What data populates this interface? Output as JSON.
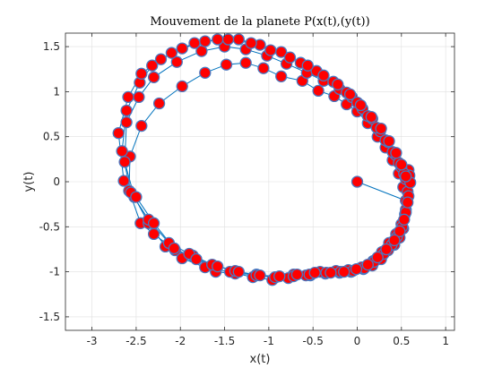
{
  "chart_data": {
    "type": "line",
    "title": "Mouvement de la planete P(x(t),(y(t))",
    "xlabel": "x(t)",
    "ylabel": "y(t)",
    "xlim": [
      -3.3,
      1.1
    ],
    "ylim": [
      -1.65,
      1.65
    ],
    "xticks": [
      -3,
      -2.5,
      -2,
      -1.5,
      -1,
      -0.5,
      0,
      0.5,
      1
    ],
    "yticks": [
      -1.5,
      -1,
      -0.5,
      0,
      0.5,
      1,
      1.5
    ],
    "xtick_labels": [
      "-3",
      "-2.5",
      "-2",
      "-1.5",
      "-1",
      "-0.5",
      "0",
      "0.5",
      "1"
    ],
    "ytick_labels": [
      "-1.5",
      "-1",
      "-0.5",
      "0",
      "0.5",
      "1",
      "1.5"
    ],
    "grid": true,
    "colors": {
      "line": "#0072bd",
      "marker_face": "#ff0000",
      "marker_edge": "#4a78c0"
    },
    "series": [
      {
        "x": [
          0.0,
          0.55,
          0.54,
          0.52,
          0.48,
          0.42,
          0.35,
          0.27,
          0.17,
          0.07,
          -0.07,
          -0.2,
          -0.36,
          -0.53,
          -0.72,
          -0.92,
          -1.14,
          -1.38,
          -1.6,
          -1.86,
          -2.06,
          -2.3,
          -2.45,
          -2.58,
          -2.57,
          -2.44,
          -2.24,
          -1.98,
          -1.72,
          -1.48,
          -1.26,
          -1.06,
          -0.86,
          -0.62,
          -0.44,
          -0.26,
          -0.12,
          0.0,
          0.12,
          0.23,
          0.32,
          0.4,
          0.47,
          0.52
        ],
        "y": [
          0.0,
          -0.21,
          -0.36,
          -0.52,
          -0.62,
          -0.7,
          -0.76,
          -0.86,
          -0.93,
          -0.97,
          -1.0,
          -1.01,
          -1.02,
          -1.04,
          -1.03,
          -1.06,
          -1.03,
          -1.02,
          -1.0,
          -0.82,
          -0.76,
          -0.58,
          -0.46,
          -0.1,
          0.28,
          0.62,
          0.87,
          1.06,
          1.21,
          1.3,
          1.32,
          1.26,
          1.17,
          1.12,
          1.01,
          0.95,
          0.86,
          0.78,
          0.65,
          0.5,
          0.38,
          0.24,
          0.09,
          -0.06
        ]
      },
      {
        "x": [
          0.58,
          0.57,
          0.55,
          0.5,
          0.44,
          0.36,
          0.28,
          0.18,
          0.05,
          -0.1,
          -0.24,
          -0.42,
          -0.58,
          -0.78,
          -0.96,
          -1.18,
          -1.44,
          -1.72,
          -1.98,
          -2.17,
          -2.36,
          -2.52,
          -2.63,
          -2.61,
          -2.47,
          -2.3,
          -2.04,
          -1.76,
          -1.5,
          -1.26,
          -1.02,
          -0.8,
          -0.57,
          -0.38,
          -0.2,
          -0.06,
          0.06,
          0.17,
          0.26,
          0.35,
          0.43,
          0.5,
          0.55
        ],
        "y": [
          0.13,
          -0.11,
          -0.31,
          -0.47,
          -0.58,
          -0.68,
          -0.78,
          -0.88,
          -0.95,
          -0.98,
          -0.99,
          -1.0,
          -1.04,
          -1.07,
          -1.09,
          -1.06,
          -1.0,
          -0.95,
          -0.85,
          -0.72,
          -0.46,
          -0.17,
          0.22,
          0.66,
          0.94,
          1.16,
          1.33,
          1.45,
          1.5,
          1.47,
          1.4,
          1.31,
          1.21,
          1.12,
          1.03,
          0.94,
          0.81,
          0.7,
          0.56,
          0.44,
          0.3,
          0.16,
          0.03
        ]
      },
      {
        "x": [
          0.59,
          0.58,
          0.55,
          0.51,
          0.45,
          0.39,
          0.3,
          0.19,
          0.08,
          -0.05,
          -0.19,
          -0.35,
          -0.54,
          -0.72,
          -0.93,
          -1.14,
          -1.38,
          -1.64,
          -1.9,
          -2.13,
          -2.36,
          -2.56,
          -2.66,
          -2.61,
          -2.46,
          -2.32,
          -2.1,
          -1.84,
          -1.58,
          -1.34,
          -1.1,
          -0.86,
          -0.64,
          -0.46,
          -0.27,
          -0.12,
          0.0,
          0.12,
          0.22,
          0.32,
          0.4,
          0.47,
          0.53
        ],
        "y": [
          0.07,
          -0.16,
          -0.34,
          -0.5,
          -0.61,
          -0.7,
          -0.8,
          -0.89,
          -0.96,
          -0.99,
          -1.0,
          -1.01,
          -1.03,
          -1.05,
          -1.06,
          -1.04,
          -0.99,
          -0.92,
          -0.8,
          -0.68,
          -0.42,
          -0.12,
          0.34,
          0.79,
          1.1,
          1.29,
          1.43,
          1.54,
          1.58,
          1.58,
          1.52,
          1.44,
          1.32,
          1.23,
          1.11,
          0.99,
          0.88,
          0.73,
          0.6,
          0.46,
          0.33,
          0.21,
          0.09
        ]
      },
      {
        "x": [
          0.6,
          0.57,
          0.53,
          0.48,
          0.42,
          0.33,
          0.23,
          0.12,
          -0.01,
          -0.15,
          -0.3,
          -0.48,
          -0.68,
          -0.88,
          -1.1,
          -1.34,
          -1.58,
          -1.82,
          -2.07,
          -2.3,
          -2.5,
          -2.64,
          -2.7,
          -2.59,
          -2.44,
          -2.22,
          -1.98,
          -1.72,
          -1.46,
          -1.2,
          -0.98,
          -0.76,
          -0.56,
          -0.38,
          -0.22,
          -0.08,
          0.04,
          0.16,
          0.27,
          0.36,
          0.44,
          0.5,
          0.55
        ],
        "y": [
          -0.01,
          -0.23,
          -0.42,
          -0.55,
          -0.65,
          -0.75,
          -0.84,
          -0.92,
          -0.97,
          -1.0,
          -1.01,
          -1.01,
          -1.03,
          -1.05,
          -1.04,
          -1.0,
          -0.94,
          -0.86,
          -0.74,
          -0.46,
          -0.17,
          0.01,
          0.54,
          0.94,
          1.2,
          1.36,
          1.48,
          1.56,
          1.58,
          1.54,
          1.46,
          1.38,
          1.29,
          1.18,
          1.08,
          0.97,
          0.85,
          0.72,
          0.59,
          0.45,
          0.32,
          0.19,
          0.06
        ]
      }
    ]
  }
}
